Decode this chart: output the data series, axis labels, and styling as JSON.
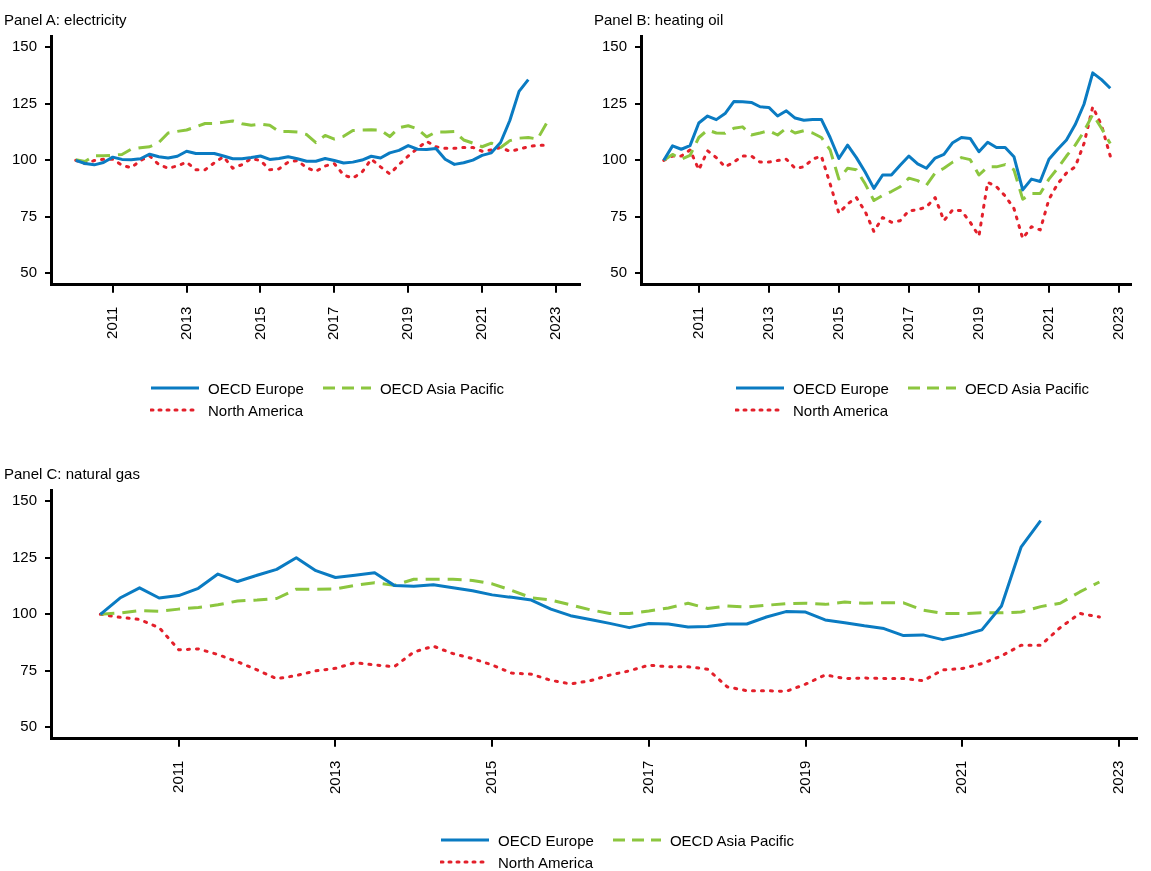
{
  "chart_data": [
    {
      "type": "line",
      "title": "Panel A: electricity",
      "legend": "bottom",
      "marker": "none",
      "grid": false,
      "x": [
        2010,
        2010.25,
        2010.5,
        2010.75,
        2011,
        2011.25,
        2011.5,
        2011.75,
        2012,
        2012.25,
        2012.5,
        2012.75,
        2013,
        2013.25,
        2013.5,
        2013.75,
        2014,
        2014.25,
        2014.5,
        2014.75,
        2015,
        2015.25,
        2015.5,
        2015.75,
        2016,
        2016.25,
        2016.5,
        2016.75,
        2017,
        2017.25,
        2017.5,
        2017.75,
        2018,
        2018.25,
        2018.5,
        2018.75,
        2019,
        2019.25,
        2019.5,
        2019.75,
        2020,
        2020.25,
        2020.5,
        2020.75,
        2021,
        2021.25,
        2021.5,
        2021.75,
        2022,
        2022.25,
        2022.5,
        2022.75
      ],
      "xlim": [
        2009.33,
        2023.65
      ],
      "xticks": [
        2011,
        2013,
        2015,
        2017,
        2019,
        2021,
        2023
      ],
      "ylim": [
        45,
        155
      ],
      "yticks": [
        50,
        75,
        100,
        125,
        150
      ],
      "series": [
        {
          "name": "OECD Europe",
          "color": "#0a7bc2",
          "line_style": "solid",
          "x": [
            2010,
            2010.25,
            2010.5,
            2010.75,
            2011,
            2011.25,
            2011.5,
            2011.75,
            2012,
            2012.25,
            2012.5,
            2012.75,
            2013,
            2013.25,
            2013.5,
            2013.75,
            2014,
            2014.25,
            2014.5,
            2014.75,
            2015,
            2015.25,
            2015.5,
            2015.75,
            2016,
            2016.25,
            2016.5,
            2016.75,
            2017,
            2017.25,
            2017.5,
            2017.75,
            2018,
            2018.25,
            2018.5,
            2018.75,
            2019,
            2019.25,
            2019.5,
            2019.75,
            2020,
            2020.25,
            2020.5,
            2020.75,
            2021,
            2021.25,
            2021.5,
            2021.75,
            2022,
            2022.25
          ],
          "values": [
            100,
            98.6,
            98,
            99,
            101.4,
            100.4,
            100.3,
            100.7,
            102.7,
            101.6,
            101,
            101.8,
            104,
            103,
            103,
            103,
            101.9,
            100.7,
            100.7,
            101.2,
            101.9,
            100.4,
            100.8,
            101.6,
            100.7,
            99.6,
            99.6,
            100.8,
            99.9,
            98.8,
            99.2,
            100.1,
            101.8,
            101,
            103.3,
            104.4,
            106.5,
            104.9,
            104.8,
            105.2,
            100.5,
            98.2,
            98.9,
            100.1,
            102.2,
            103.3,
            107.9,
            117.6,
            130.5,
            135.7
          ]
        },
        {
          "name": "OECD Asia Pacific",
          "color": "#8cc63f",
          "line_style": "dashed",
          "values": [
            100.3,
            99.5,
            102,
            102,
            102.2,
            102.6,
            104.9,
            105.6,
            106,
            107.9,
            112.1,
            112.8,
            113.4,
            114.8,
            116.3,
            116.3,
            116.8,
            117.4,
            116.2,
            115.5,
            116,
            115.5,
            112.8,
            112.8,
            112.5,
            111.4,
            107.8,
            111,
            109.4,
            110.6,
            113.2,
            113.4,
            113.5,
            113.4,
            110.5,
            114.4,
            115.3,
            113.9,
            110.4,
            112.5,
            112.5,
            112.7,
            109,
            107.6,
            106,
            107.6,
            105.7,
            108.7,
            109.8,
            110.1,
            109.4,
            116.6
          ]
        },
        {
          "name": "North America",
          "color": "#e3202b",
          "line_style": "dotted",
          "values": [
            100,
            98.5,
            99.9,
            100.5,
            100.5,
            97.8,
            96.7,
            99.9,
            101.9,
            98.1,
            96.5,
            97.5,
            99.2,
            95.8,
            95.8,
            98.9,
            101.6,
            96.5,
            98.1,
            100.8,
            99.9,
            95.8,
            96.2,
            99.2,
            99.9,
            96.7,
            95.1,
            97.5,
            98.5,
            93.5,
            92.1,
            94.8,
            100.5,
            97.1,
            94,
            98.1,
            101.9,
            105.3,
            108.4,
            106,
            105.3,
            105.3,
            105.7,
            105.7,
            104,
            104.6,
            105.7,
            104,
            104.9,
            106,
            106.7,
            106.7
          ]
        }
      ]
    },
    {
      "type": "line",
      "title": "Panel B: heating oil",
      "legend": "bottom",
      "marker": "none",
      "grid": false,
      "x": [
        2010,
        2010.25,
        2010.5,
        2010.75,
        2011,
        2011.25,
        2011.5,
        2011.75,
        2012,
        2012.25,
        2012.5,
        2012.75,
        2013,
        2013.25,
        2013.5,
        2013.75,
        2014,
        2014.25,
        2014.5,
        2014.75,
        2015,
        2015.25,
        2015.5,
        2015.75,
        2016,
        2016.25,
        2016.5,
        2016.75,
        2017,
        2017.25,
        2017.5,
        2017.75,
        2018,
        2018.25,
        2018.5,
        2018.75,
        2019,
        2019.25,
        2019.5,
        2019.75,
        2020,
        2020.25,
        2020.5,
        2020.75,
        2021,
        2021.25,
        2021.5,
        2021.75,
        2022,
        2022.25,
        2022.5,
        2022.75
      ],
      "xlim": [
        2009.35,
        2023.35
      ],
      "xticks": [
        2011,
        2013,
        2015,
        2017,
        2019,
        2021,
        2023
      ],
      "ylim": [
        45,
        155
      ],
      "yticks": [
        50,
        75,
        100,
        125,
        150
      ],
      "series": [
        {
          "name": "OECD Europe",
          "color": "#0a7bc2",
          "line_style": "solid",
          "values": [
            100,
            106.4,
            104.9,
            106.5,
            116.5,
            119.6,
            118,
            120.7,
            126,
            125.9,
            125.6,
            123.7,
            123.4,
            119.6,
            121.9,
            118.7,
            117.7,
            118.1,
            118.1,
            110.1,
            100.8,
            106.7,
            101.2,
            94.8,
            87.6,
            93.5,
            93.5,
            97.8,
            101.9,
            98.4,
            96.5,
            101,
            102.6,
            107.8,
            110.1,
            109.7,
            103.8,
            108,
            105.7,
            105.7,
            101.6,
            86.9,
            91.7,
            90.6,
            100.5,
            104.9,
            109,
            115.8,
            124.8,
            138.7,
            135.7,
            131.9
          ]
        },
        {
          "name": "OECD Asia Pacific",
          "color": "#8cc63f",
          "line_style": "dashed",
          "values": [
            100,
            102.6,
            100.5,
            102.2,
            110.1,
            113.4,
            112.1,
            112,
            114.2,
            114.8,
            111.2,
            112.1,
            113.1,
            111.2,
            114.2,
            112.1,
            113.1,
            112.1,
            110.1,
            104.6,
            91.7,
            96.5,
            95.8,
            89.6,
            82.2,
            84.5,
            86.2,
            88.3,
            92.1,
            91,
            89,
            94.4,
            96.5,
            99.2,
            101.2,
            100.3,
            93.5,
            97.1,
            97.1,
            98.1,
            95.8,
            82.8,
            85.3,
            85.3,
            91.7,
            96.5,
            101.9,
            106.7,
            112.8,
            120.3,
            114.2,
            107.4
          ]
        },
        {
          "name": "North America",
          "color": "#e3202b",
          "line_style": "dotted",
          "values": [
            100,
            101.9,
            101.9,
            104.6,
            95.8,
            104.2,
            101.2,
            97.1,
            99.2,
            101.9,
            101.9,
            99.2,
            99.2,
            99.9,
            100.5,
            96.5,
            97.1,
            100.5,
            101.9,
            89.6,
            76.6,
            80.7,
            83.5,
            77.4,
            68.5,
            74.7,
            72.6,
            73.3,
            77.7,
            78.1,
            79.4,
            83.5,
            73.3,
            78.1,
            77.7,
            72.6,
            66.5,
            90.3,
            88.3,
            84.2,
            78.7,
            65.4,
            70.6,
            69.2,
            82.8,
            89.6,
            94.4,
            97.1,
            107.4,
            123.7,
            115.5,
            101.9
          ]
        }
      ]
    },
    {
      "type": "line",
      "title": "Panel C: natural gas",
      "legend": "bottom",
      "marker": "none",
      "grid": false,
      "x": [
        2010,
        2010.25,
        2010.5,
        2010.75,
        2011,
        2011.25,
        2011.5,
        2011.75,
        2012,
        2012.25,
        2012.5,
        2012.75,
        2013,
        2013.25,
        2013.5,
        2013.75,
        2014,
        2014.25,
        2014.5,
        2014.75,
        2015,
        2015.25,
        2015.5,
        2015.75,
        2016,
        2016.25,
        2016.5,
        2016.75,
        2017,
        2017.25,
        2017.5,
        2017.75,
        2018,
        2018.25,
        2018.5,
        2018.75,
        2019,
        2019.25,
        2019.5,
        2019.75,
        2020,
        2020.25,
        2020.5,
        2020.75,
        2021,
        2021.25,
        2021.5,
        2021.75,
        2022,
        2022.25,
        2022.5,
        2022.75
      ],
      "xlim": [
        2009.37,
        2023.23
      ],
      "xticks": [
        2011,
        2013,
        2015,
        2017,
        2019,
        2021,
        2023
      ],
      "ylim": [
        45,
        155
      ],
      "yticks": [
        50,
        75,
        100,
        125,
        150
      ],
      "series": [
        {
          "name": "OECD Europe",
          "color": "#0a7bc2",
          "line_style": "solid",
          "x": [
            2010,
            2010.25,
            2010.5,
            2010.75,
            2011,
            2011.25,
            2011.5,
            2011.75,
            2012,
            2012.25,
            2012.5,
            2012.75,
            2013,
            2013.25,
            2013.5,
            2013.75,
            2014,
            2014.25,
            2014.5,
            2014.75,
            2015,
            2015.25,
            2015.5,
            2015.75,
            2016,
            2016.25,
            2016.5,
            2016.75,
            2017,
            2017.25,
            2017.5,
            2017.75,
            2018,
            2018.25,
            2018.5,
            2018.75,
            2019,
            2019.25,
            2019.5,
            2019.75,
            2020,
            2020.25,
            2020.5,
            2020.75,
            2021,
            2021.25,
            2021.5,
            2021.75,
            2022
          ],
          "values": [
            100,
            107.2,
            111.7,
            107.2,
            108.3,
            111.5,
            117.8,
            114.5,
            117.3,
            119.9,
            125,
            119.3,
            116.3,
            117.3,
            118.4,
            112.8,
            112.4,
            113.1,
            111.8,
            110.4,
            108.6,
            107.5,
            106.3,
            102.3,
            99.4,
            97.7,
            96,
            94.1,
            95.9,
            95.7,
            94.4,
            94.6,
            95.7,
            95.7,
            98.8,
            101.2,
            101,
            97.5,
            96.3,
            94.9,
            93.7,
            90.6,
            90.9,
            88.8,
            90.7,
            93.1,
            103.7,
            129.7,
            141.5
          ]
        },
        {
          "name": "OECD Asia Pacific",
          "color": "#8cc63f",
          "line_style": "dashed",
          "values": [
            100,
            100.6,
            101.6,
            101.3,
            102.3,
            103,
            104.2,
            105.9,
            106.3,
            107,
            111.1,
            111.1,
            111.2,
            112.8,
            114,
            112.8,
            115.5,
            115.5,
            115.5,
            115,
            113.5,
            110.6,
            107.3,
            106.3,
            104.2,
            102,
            100.4,
            100.4,
            101.5,
            102.8,
            104.9,
            102.6,
            103.7,
            103.2,
            104,
            104.7,
            104.9,
            104.4,
            105.4,
            104.9,
            105.1,
            105.1,
            101.8,
            100.4,
            100.3,
            100.7,
            100.7,
            101,
            103.4,
            104.9,
            109.9,
            114.3
          ]
        },
        {
          "name": "North America",
          "color": "#e3202b",
          "line_style": "dotted",
          "values": [
            100,
            98.7,
            97.7,
            94.1,
            84.3,
            84.7,
            82.2,
            79,
            75.4,
            71.5,
            72.9,
            75,
            76.1,
            78.6,
            77.6,
            76.8,
            83.3,
            85.9,
            82.6,
            80.4,
            77.6,
            74,
            73.5,
            70.8,
            69.2,
            70.6,
            73.1,
            75,
            77.5,
            76.8,
            76.8,
            75.7,
            67.9,
            66.2,
            66.2,
            65.9,
            69.1,
            73.2,
            71.6,
            71.8,
            71.6,
            71.6,
            70.6,
            75.4,
            76,
            78.2,
            81.6,
            86.3,
            86.3,
            94.1,
            100.4,
            98.8
          ]
        }
      ]
    }
  ]
}
